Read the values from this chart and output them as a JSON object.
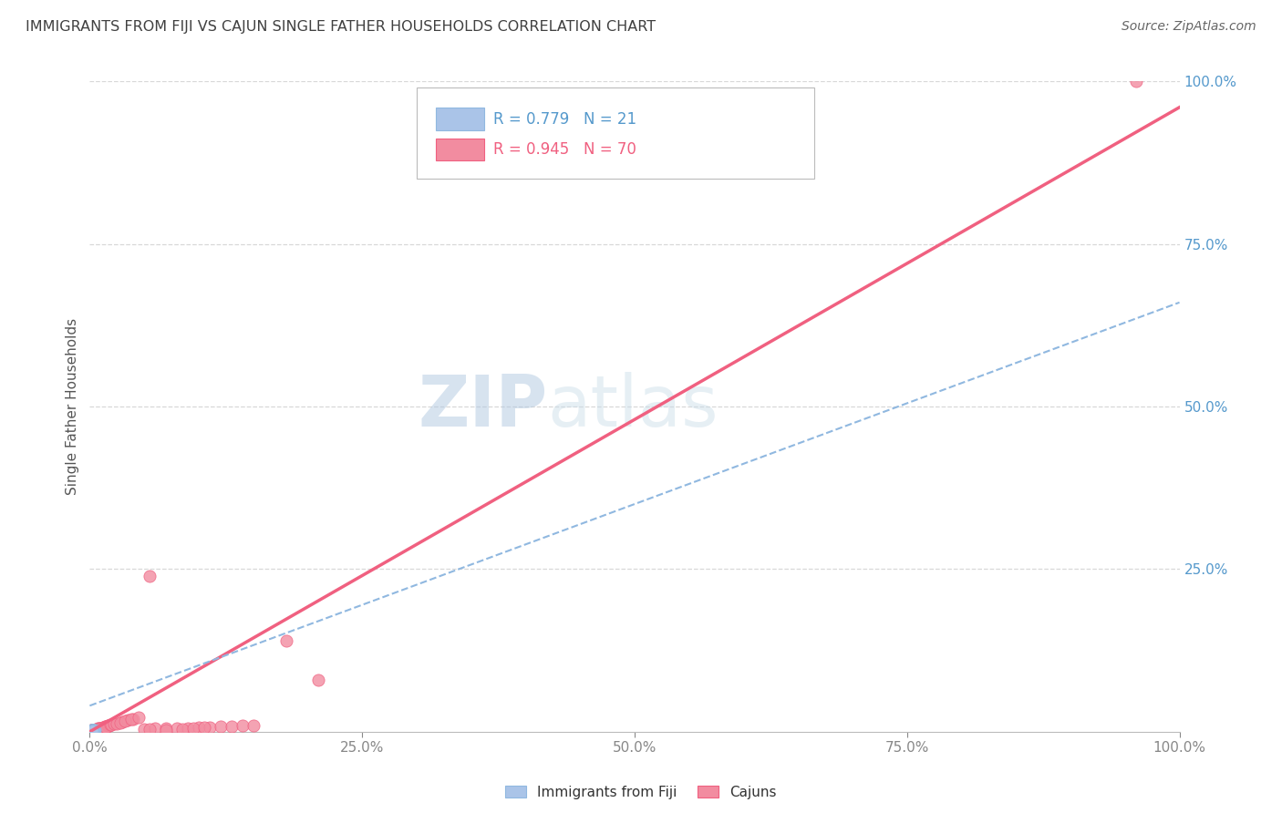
{
  "title": "IMMIGRANTS FROM FIJI VS CAJUN SINGLE FATHER HOUSEHOLDS CORRELATION CHART",
  "source": "Source: ZipAtlas.com",
  "ylabel": "Single Father Households",
  "xlim": [
    0,
    1.0
  ],
  "ylim": [
    0,
    1.0
  ],
  "xtick_labels": [
    "0.0%",
    "25.0%",
    "50.0%",
    "75.0%",
    "100.0%"
  ],
  "xtick_positions": [
    0.0,
    0.25,
    0.5,
    0.75,
    1.0
  ],
  "ytick_labels": [
    "25.0%",
    "50.0%",
    "75.0%",
    "100.0%"
  ],
  "ytick_positions": [
    0.25,
    0.5,
    0.75,
    1.0
  ],
  "fiji_color": "#aac4e8",
  "cajun_color": "#f28ca0",
  "fiji_line_color": "#90b8e0",
  "cajun_line_color": "#f06080",
  "fiji_R": "0.779",
  "fiji_N": "21",
  "cajun_R": "0.945",
  "cajun_N": "70",
  "watermark_zip": "ZIP",
  "watermark_atlas": "atlas",
  "background_color": "#ffffff",
  "grid_color": "#d8d8d8",
  "title_color": "#404040",
  "source_color": "#666666",
  "tick_color": "#5599cc",
  "legend_fiji_label": "Immigrants from Fiji",
  "legend_cajun_label": "Cajuns",
  "cajun_slope": 0.96,
  "cajun_intercept": 0.0,
  "fiji_slope": 0.62,
  "fiji_intercept": 0.04,
  "cajun_scatter_cluster": [
    [
      0.001,
      0.001
    ],
    [
      0.002,
      0.002
    ],
    [
      0.003,
      0.001
    ],
    [
      0.001,
      0.003
    ],
    [
      0.002,
      0.001
    ],
    [
      0.003,
      0.002
    ],
    [
      0.004,
      0.002
    ],
    [
      0.002,
      0.003
    ],
    [
      0.001,
      0.002
    ],
    [
      0.003,
      0.003
    ],
    [
      0.004,
      0.003
    ],
    [
      0.005,
      0.003
    ],
    [
      0.002,
      0.001
    ],
    [
      0.003,
      0.001
    ],
    [
      0.001,
      0.001
    ],
    [
      0.004,
      0.002
    ],
    [
      0.006,
      0.004
    ],
    [
      0.005,
      0.003
    ],
    [
      0.007,
      0.004
    ],
    [
      0.003,
      0.002
    ],
    [
      0.008,
      0.005
    ],
    [
      0.004,
      0.003
    ],
    [
      0.005,
      0.002
    ],
    [
      0.006,
      0.003
    ],
    [
      0.007,
      0.005
    ],
    [
      0.009,
      0.005
    ],
    [
      0.01,
      0.006
    ],
    [
      0.008,
      0.004
    ],
    [
      0.011,
      0.006
    ],
    [
      0.012,
      0.007
    ],
    [
      0.013,
      0.007
    ],
    [
      0.01,
      0.005
    ],
    [
      0.014,
      0.008
    ],
    [
      0.015,
      0.008
    ],
    [
      0.012,
      0.006
    ],
    [
      0.016,
      0.009
    ],
    [
      0.017,
      0.009
    ],
    [
      0.018,
      0.01
    ],
    [
      0.015,
      0.007
    ],
    [
      0.019,
      0.011
    ],
    [
      0.02,
      0.011
    ],
    [
      0.022,
      0.012
    ],
    [
      0.025,
      0.013
    ],
    [
      0.03,
      0.015
    ],
    [
      0.035,
      0.018
    ],
    [
      0.04,
      0.02
    ],
    [
      0.028,
      0.014
    ],
    [
      0.032,
      0.016
    ],
    [
      0.038,
      0.019
    ],
    [
      0.045,
      0.022
    ],
    [
      0.05,
      0.004
    ],
    [
      0.06,
      0.005
    ],
    [
      0.07,
      0.006
    ],
    [
      0.055,
      0.004
    ],
    [
      0.08,
      0.005
    ],
    [
      0.09,
      0.006
    ],
    [
      0.1,
      0.007
    ],
    [
      0.11,
      0.007
    ],
    [
      0.12,
      0.008
    ],
    [
      0.13,
      0.008
    ],
    [
      0.14,
      0.009
    ],
    [
      0.15,
      0.009
    ],
    [
      0.055,
      0.24
    ],
    [
      0.18,
      0.14
    ],
    [
      0.21,
      0.08
    ],
    [
      0.96,
      1.0
    ],
    [
      0.07,
      0.003
    ],
    [
      0.085,
      0.004
    ],
    [
      0.095,
      0.006
    ],
    [
      0.105,
      0.007
    ]
  ],
  "fiji_scatter_cluster": [
    [
      0.001,
      0.001
    ],
    [
      0.002,
      0.001
    ],
    [
      0.001,
      0.002
    ],
    [
      0.003,
      0.001
    ],
    [
      0.002,
      0.002
    ],
    [
      0.001,
      0.001
    ],
    [
      0.003,
      0.002
    ],
    [
      0.002,
      0.001
    ],
    [
      0.001,
      0.001
    ],
    [
      0.004,
      0.002
    ],
    [
      0.003,
      0.001
    ],
    [
      0.002,
      0.002
    ],
    [
      0.001,
      0.001
    ],
    [
      0.004,
      0.001
    ],
    [
      0.005,
      0.002
    ],
    [
      0.002,
      0.002
    ],
    [
      0.003,
      0.002
    ],
    [
      0.004,
      0.002
    ],
    [
      0.001,
      0.001
    ],
    [
      0.003,
      0.001
    ],
    [
      0.002,
      0.001
    ]
  ]
}
